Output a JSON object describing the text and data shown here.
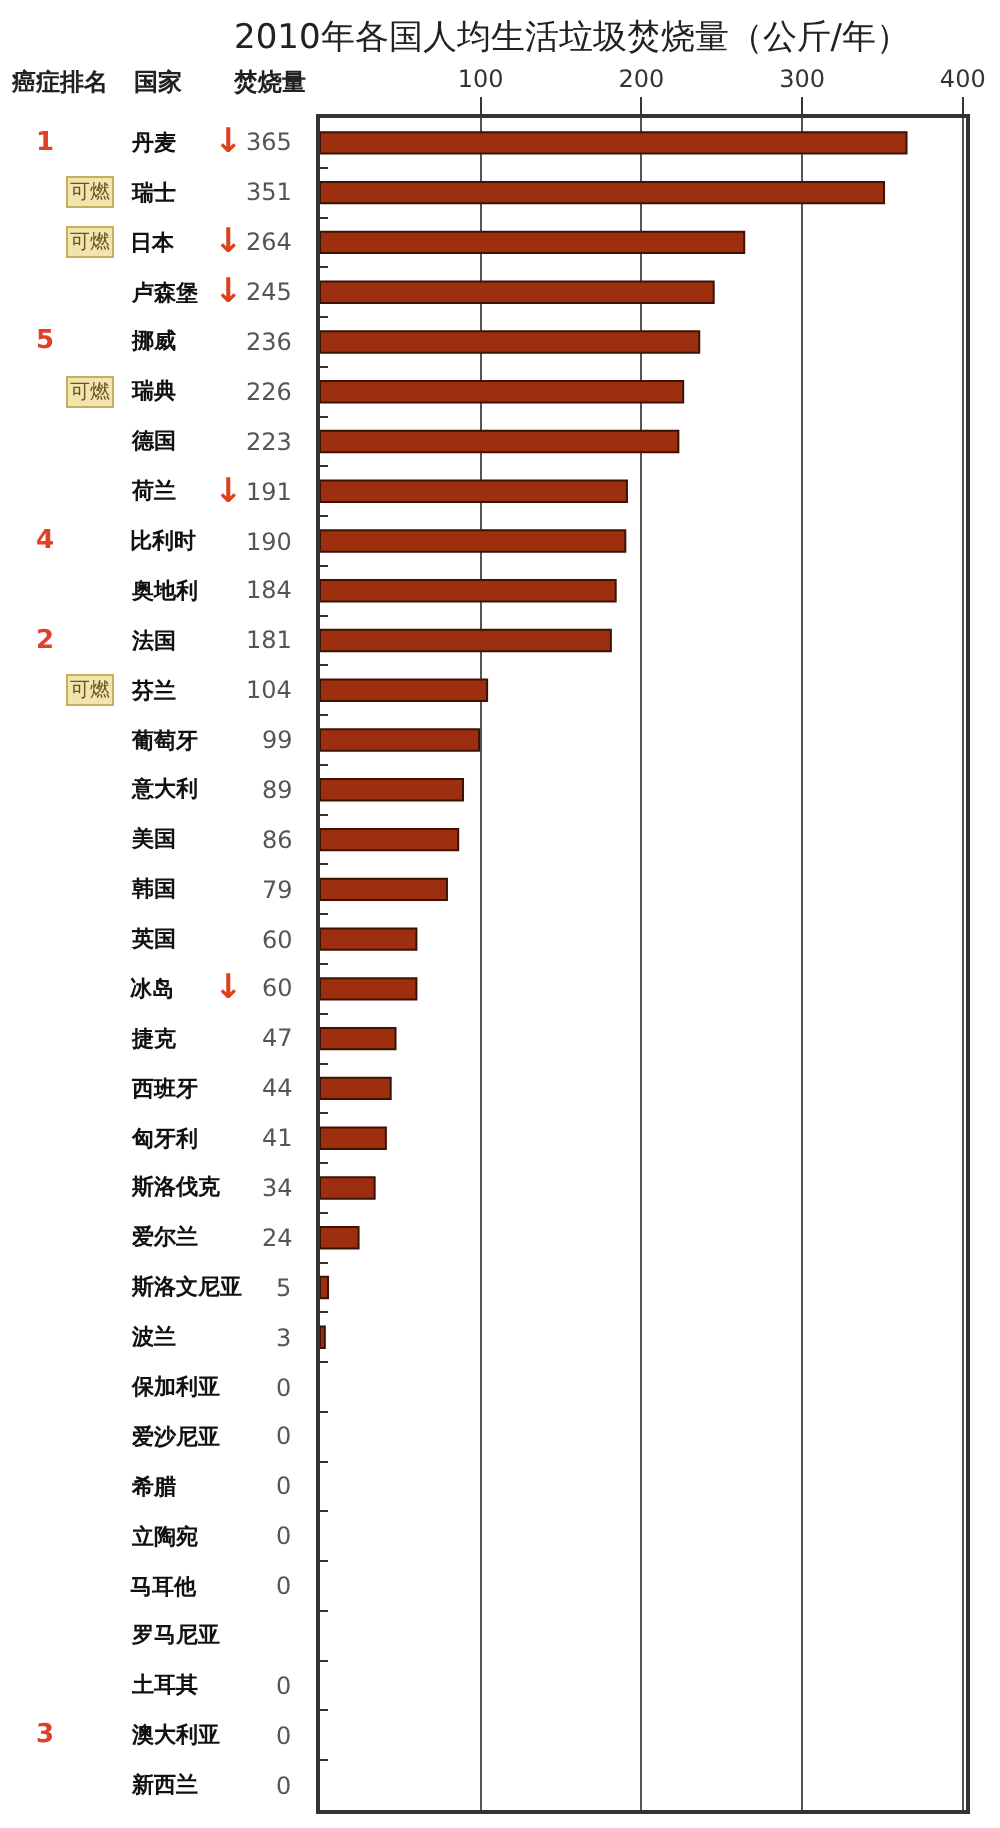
{
  "chart_data": {
    "type": "bar",
    "orientation": "horizontal",
    "title": "2010年各国人均生活垃圾焚烧量（公斤/年）",
    "categories": [
      "丹麦",
      "瑞士",
      "日本",
      "卢森堡",
      "挪威",
      "瑞典",
      "德国",
      "荷兰",
      "比利时",
      "奥地利",
      "法国",
      "芬兰",
      "葡萄牙",
      "意大利",
      "美国",
      "韩国",
      "英国",
      "冰岛",
      "捷克",
      "西班牙",
      "匈牙利",
      "斯洛伐克",
      "爱尔兰",
      "斯洛文尼亚",
      "波兰",
      "保加利亚",
      "爱沙尼亚",
      "希腊",
      "立陶宛",
      "马耳他",
      "罗马尼亚",
      "土耳其",
      "澳大利亚",
      "新西兰"
    ],
    "values": [
      365,
      351,
      264,
      245,
      236,
      226,
      223,
      191,
      190,
      184,
      181,
      104,
      99,
      89,
      86,
      79,
      60,
      60,
      47,
      44,
      41,
      34,
      24,
      5,
      3,
      0,
      0,
      0,
      0,
      0,
      null,
      0,
      0,
      0
    ],
    "color": "#9e2f0e",
    "xlim": [
      0,
      402
    ],
    "xticks": [
      100,
      200,
      300,
      400
    ],
    "grid": "x",
    "data_labels": true,
    "annotations": [
      "癌症排名",
      "国家",
      "焚烧量",
      "1",
      "5",
      "4",
      "2",
      "3",
      "可燃",
      "可燃",
      "可燃",
      "可燃",
      "↓",
      "↓",
      "↓",
      "↓",
      "↓"
    ]
  }
}
